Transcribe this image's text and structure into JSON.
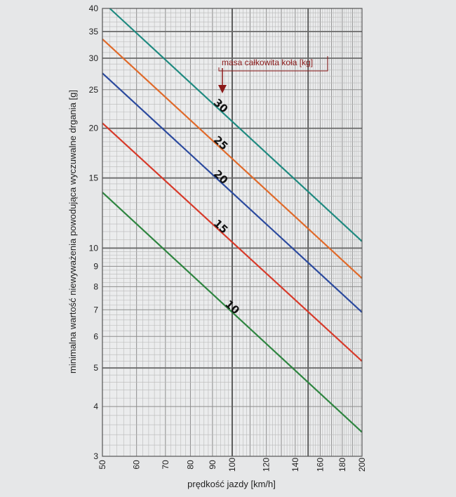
{
  "chart_data": {
    "type": "line",
    "title": "",
    "xlabel": "prędkość jazdy [km/h]",
    "ylabel": "minimalna wartość niewyważenia powodująca wyczuwalne drgania [g]",
    "x_scale": "log",
    "y_scale": "log",
    "xlim": [
      50,
      200
    ],
    "ylim": [
      3,
      40
    ],
    "x_ticks": [
      50,
      60,
      70,
      80,
      90,
      100,
      120,
      140,
      160,
      180,
      200
    ],
    "y_ticks": [
      3,
      4,
      5,
      6,
      7,
      8,
      9,
      10,
      15,
      20,
      25,
      30,
      35,
      40
    ],
    "x_major_lines": [
      100,
      150
    ],
    "y_major_lines": [
      5,
      10,
      15,
      20,
      30,
      35
    ],
    "grid": true,
    "annotation": {
      "text": "masa całkowita koła [kg]",
      "color": "#8b1a1a"
    },
    "series": [
      {
        "name": "30",
        "color": "#1f8a80",
        "x": [
          52,
          200
        ],
        "y": [
          40,
          10.4
        ]
      },
      {
        "name": "25",
        "color": "#e06a2a",
        "x": [
          50,
          200
        ],
        "y": [
          33.5,
          8.4
        ]
      },
      {
        "name": "20",
        "color": "#2b4a9e",
        "x": [
          50,
          200
        ],
        "y": [
          27.5,
          6.9
        ]
      },
      {
        "name": "15",
        "color": "#d73a2a",
        "x": [
          50,
          200
        ],
        "y": [
          20.6,
          5.2
        ]
      },
      {
        "name": "10",
        "color": "#2e8540",
        "x": [
          50,
          200
        ],
        "y": [
          13.8,
          3.45
        ]
      }
    ]
  }
}
